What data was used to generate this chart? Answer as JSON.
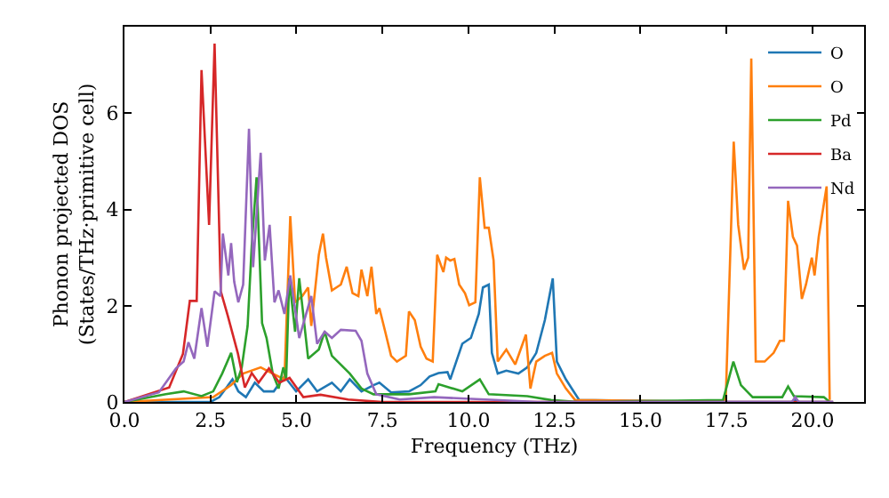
{
  "chart_data": {
    "type": "line",
    "xlabel": "Frequency (THz)",
    "ylabel": "Phonon projected DOS\n(States/THz·primitive cell)",
    "xlim": [
      0,
      21.5
    ],
    "ylim": [
      0,
      7.8
    ],
    "xticks": [
      {
        "value": 0,
        "label": "0.0"
      },
      {
        "value": 2.5,
        "label": "2.5"
      },
      {
        "value": 5,
        "label": "5.0"
      },
      {
        "value": 7.5,
        "label": "7.5"
      },
      {
        "value": 10,
        "label": "10.0"
      },
      {
        "value": 12.5,
        "label": "12.5"
      },
      {
        "value": 15,
        "label": "15.0"
      },
      {
        "value": 17.5,
        "label": "17.5"
      },
      {
        "value": 20,
        "label": "20.0"
      }
    ],
    "yticks": [
      0,
      2,
      4,
      6
    ],
    "legend": "top right",
    "marker": "none",
    "line_style": "solid",
    "series": [
      {
        "name": "O",
        "color": "#1f77b4",
        "x": [
          0,
          2.5,
          2.76,
          3.14,
          3.31,
          3.53,
          3.79,
          4.05,
          4.34,
          4.65,
          4.99,
          5.34,
          5.6,
          6.03,
          6.29,
          6.55,
          6.89,
          7.24,
          7.41,
          7.75,
          8.27,
          8.61,
          8.87,
          9.13,
          9.39,
          9.47,
          9.82,
          10.07,
          10.3,
          10.42,
          10.59,
          10.68,
          10.85,
          11.1,
          11.45,
          11.71,
          11.97,
          12.22,
          12.45,
          12.57,
          12.83,
          13.22,
          17.5,
          19.4,
          19.5,
          19.6,
          20.6
        ],
        "values": [
          0,
          0,
          0.1,
          0.47,
          0.22,
          0.1,
          0.4,
          0.22,
          0.22,
          0.53,
          0.22,
          0.47,
          0.22,
          0.4,
          0.22,
          0.47,
          0.22,
          0.35,
          0.4,
          0.2,
          0.22,
          0.35,
          0.53,
          0.6,
          0.62,
          0.47,
          1.21,
          1.33,
          1.83,
          2.38,
          2.44,
          1.02,
          0.59,
          0.65,
          0.59,
          0.72,
          1.02,
          1.7,
          2.57,
          0.84,
          0.47,
          0.04,
          0,
          0,
          0.05,
          0,
          0
        ]
      },
      {
        "name": "O",
        "color": "#ff7f0e",
        "x": [
          0,
          2.58,
          3.1,
          3.45,
          3.96,
          4.31,
          4.65,
          4.82,
          4.96,
          5.17,
          5.34,
          5.43,
          5.65,
          5.77,
          5.86,
          6.03,
          6.29,
          6.46,
          6.63,
          6.8,
          6.89,
          7.06,
          7.18,
          7.32,
          7.41,
          7.58,
          7.75,
          7.92,
          8.18,
          8.27,
          8.44,
          8.61,
          8.78,
          8.96,
          9.09,
          9.27,
          9.35,
          9.47,
          9.59,
          9.73,
          9.9,
          10.02,
          10.2,
          10.33,
          10.47,
          10.59,
          10.73,
          10.85,
          11.1,
          11.36,
          11.67,
          11.8,
          11.97,
          12.22,
          12.43,
          12.57,
          12.83,
          13.1,
          17.4,
          17.48,
          17.71,
          17.84,
          18.01,
          18.13,
          18.22,
          18.35,
          18.61,
          18.87,
          19.05,
          19.17,
          19.29,
          19.43,
          19.55,
          19.69,
          19.81,
          19.98,
          20.06,
          20.18,
          20.41,
          20.5
        ],
        "values": [
          0,
          0.1,
          0.35,
          0.59,
          0.72,
          0.59,
          0.47,
          3.86,
          2.07,
          2.2,
          2.38,
          1.58,
          3.06,
          3.5,
          3.0,
          2.32,
          2.44,
          2.81,
          2.26,
          2.2,
          2.75,
          2.2,
          2.81,
          1.83,
          1.95,
          1.46,
          0.96,
          0.84,
          0.96,
          1.88,
          1.7,
          1.15,
          0.9,
          0.84,
          3.06,
          2.7,
          3.0,
          2.94,
          2.97,
          2.44,
          2.26,
          2.01,
          2.07,
          4.67,
          3.62,
          3.62,
          2.94,
          0.84,
          1.09,
          0.78,
          1.4,
          0.28,
          0.84,
          0.96,
          1.02,
          0.59,
          0.28,
          0.04,
          0,
          0.1,
          5.41,
          3.68,
          2.75,
          3.0,
          7.14,
          0.84,
          0.84,
          1.02,
          1.27,
          1.27,
          4.18,
          3.43,
          3.25,
          2.14,
          2.44,
          3.0,
          2.63,
          3.43,
          4.48,
          0.04
        ]
      },
      {
        "name": "Pd",
        "color": "#2ca02c",
        "x": [
          0,
          1.2,
          1.72,
          2.24,
          2.58,
          2.84,
          3.1,
          3.27,
          3.41,
          3.58,
          3.7,
          3.84,
          4.0,
          4.13,
          4.31,
          4.48,
          4.62,
          4.7,
          4.79,
          4.96,
          5.08,
          5.34,
          5.65,
          5.82,
          6.03,
          6.55,
          6.89,
          7.24,
          8.27,
          9.04,
          9.13,
          9.82,
          10.33,
          10.59,
          11.71,
          12.4,
          13.2,
          17.4,
          17.7,
          17.92,
          18.26,
          19.12,
          19.29,
          19.46,
          20.33,
          20.5
        ],
        "values": [
          0,
          0.16,
          0.22,
          0.12,
          0.22,
          0.59,
          1.02,
          0.41,
          0.72,
          1.58,
          3.25,
          4.67,
          1.64,
          1.33,
          0.59,
          0.28,
          0.72,
          0.47,
          2.57,
          1.46,
          2.57,
          0.9,
          1.09,
          1.46,
          0.96,
          0.59,
          0.28,
          0.16,
          0.16,
          0.22,
          0.37,
          0.22,
          0.47,
          0.16,
          0.12,
          0.04,
          0,
          0.04,
          0.84,
          0.35,
          0.1,
          0.1,
          0.32,
          0.12,
          0.1,
          0
        ]
      },
      {
        "name": "Ba",
        "color": "#d62728",
        "x": [
          0,
          1.3,
          1.7,
          1.9,
          2.1,
          2.24,
          2.46,
          2.62,
          2.8,
          3.0,
          3.3,
          3.5,
          3.7,
          3.9,
          4.2,
          4.5,
          4.8,
          5.2,
          5.7,
          6.5,
          7.5,
          20.6
        ],
        "values": [
          0,
          0.3,
          1.0,
          2.1,
          2.1,
          6.9,
          3.68,
          7.45,
          2.3,
          1.8,
          1.0,
          0.3,
          0.6,
          0.4,
          0.7,
          0.4,
          0.5,
          0.1,
          0.15,
          0.05,
          0,
          0
        ]
      },
      {
        "name": "Nd",
        "color": "#9467bd",
        "x": [
          0,
          1.0,
          1.5,
          1.72,
          1.86,
          2.03,
          2.24,
          2.41,
          2.62,
          2.79,
          2.86,
          3.02,
          3.1,
          3.19,
          3.31,
          3.45,
          3.62,
          3.74,
          3.96,
          4.08,
          4.22,
          4.36,
          4.48,
          4.65,
          4.82,
          5.08,
          5.43,
          5.6,
          5.82,
          6.03,
          6.29,
          6.72,
          6.89,
          7.06,
          7.32,
          8.0,
          9.0,
          10.5,
          12.0,
          19.4,
          19.5,
          19.6,
          20.6
        ],
        "values": [
          0,
          0.2,
          0.7,
          0.84,
          1.24,
          0.9,
          1.95,
          1.15,
          2.3,
          2.2,
          3.5,
          2.63,
          3.3,
          2.5,
          2.07,
          2.44,
          5.68,
          2.8,
          5.18,
          2.94,
          3.68,
          2.07,
          2.32,
          1.83,
          2.63,
          1.33,
          2.2,
          1.21,
          1.46,
          1.33,
          1.5,
          1.48,
          1.27,
          0.59,
          0.16,
          0.05,
          0.1,
          0.05,
          0,
          0,
          0.1,
          0,
          0
        ]
      }
    ]
  }
}
